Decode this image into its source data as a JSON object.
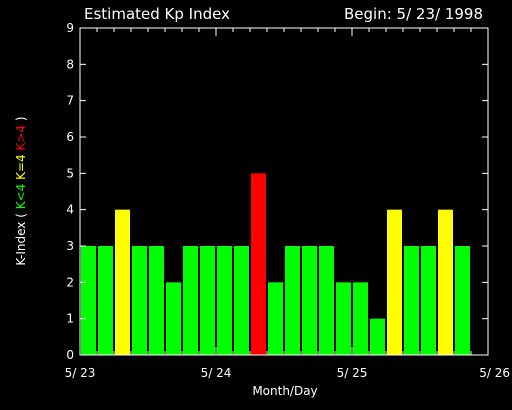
{
  "chart_data": {
    "type": "bar",
    "title": "Estimated Kp Index",
    "subtitle": "Begin: 5/ 23/ 1998",
    "xlabel": "Month/Day",
    "ylabel": {
      "prefix": "K-Index (",
      "green": "K<4",
      "yellow": "K=4",
      "red": "K>4",
      "suffix": ")"
    },
    "ylim": [
      0,
      9
    ],
    "y_ticks": [
      "0",
      "1",
      "2",
      "3",
      "4",
      "5",
      "6",
      "7",
      "8",
      "9"
    ],
    "x_ticks": [
      "5/ 23",
      "5/ 24",
      "5/ 25",
      "5/ 26"
    ],
    "values": [
      3,
      3,
      4,
      3,
      3,
      2,
      3,
      3,
      3,
      3,
      5,
      2,
      3,
      3,
      3,
      2,
      2,
      1,
      4,
      3,
      3,
      4,
      3
    ],
    "colors": {
      "low": "#00ff00",
      "equal": "#ffff00",
      "high": "#ff0000",
      "axis": "#ffffff",
      "background": "#000000"
    }
  }
}
